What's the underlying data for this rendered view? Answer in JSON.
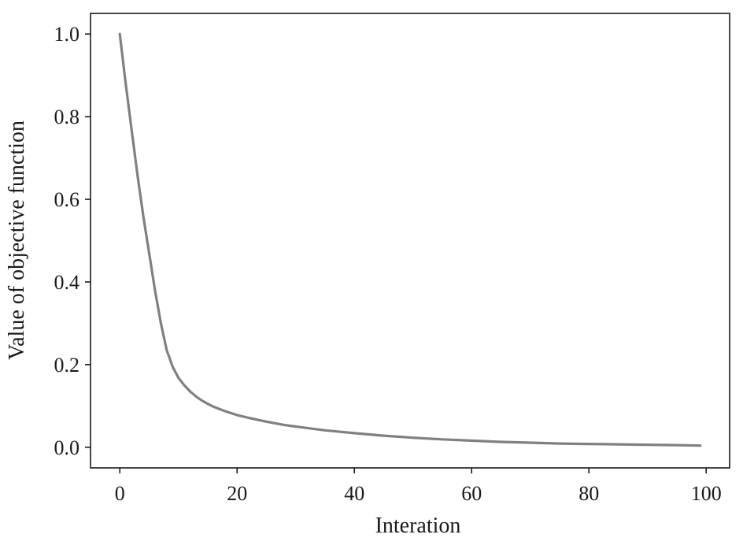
{
  "chart_data": {
    "type": "line",
    "title": "",
    "xlabel": "Interation",
    "ylabel": "Value of objective function",
    "xlim": [
      -5,
      104
    ],
    "ylim": [
      -0.05,
      1.05
    ],
    "xticks": [
      0,
      20,
      40,
      60,
      80,
      100
    ],
    "xtick_labels": [
      "0",
      "20",
      "40",
      "60",
      "80",
      "100"
    ],
    "yticks": [
      0.0,
      0.2,
      0.4,
      0.6,
      0.8,
      1.0
    ],
    "ytick_labels": [
      "0.0",
      "0.2",
      "0.4",
      "0.6",
      "0.8",
      "1.0"
    ],
    "grid": false,
    "series": [
      {
        "color": "#808080",
        "x": [
          0,
          1,
          2,
          3,
          4,
          5,
          6,
          7,
          8,
          9,
          10,
          11,
          12,
          13,
          14,
          15,
          16,
          18,
          20,
          22,
          25,
          28,
          30,
          35,
          40,
          45,
          50,
          55,
          60,
          65,
          70,
          75,
          80,
          85,
          90,
          95,
          99
        ],
        "y": [
          1.0,
          0.88,
          0.77,
          0.66,
          0.56,
          0.47,
          0.38,
          0.3,
          0.235,
          0.195,
          0.168,
          0.15,
          0.135,
          0.123,
          0.113,
          0.105,
          0.098,
          0.087,
          0.078,
          0.071,
          0.062,
          0.054,
          0.05,
          0.041,
          0.034,
          0.028,
          0.023,
          0.019,
          0.016,
          0.013,
          0.011,
          0.009,
          0.008,
          0.007,
          0.006,
          0.005,
          0.004
        ]
      }
    ]
  }
}
